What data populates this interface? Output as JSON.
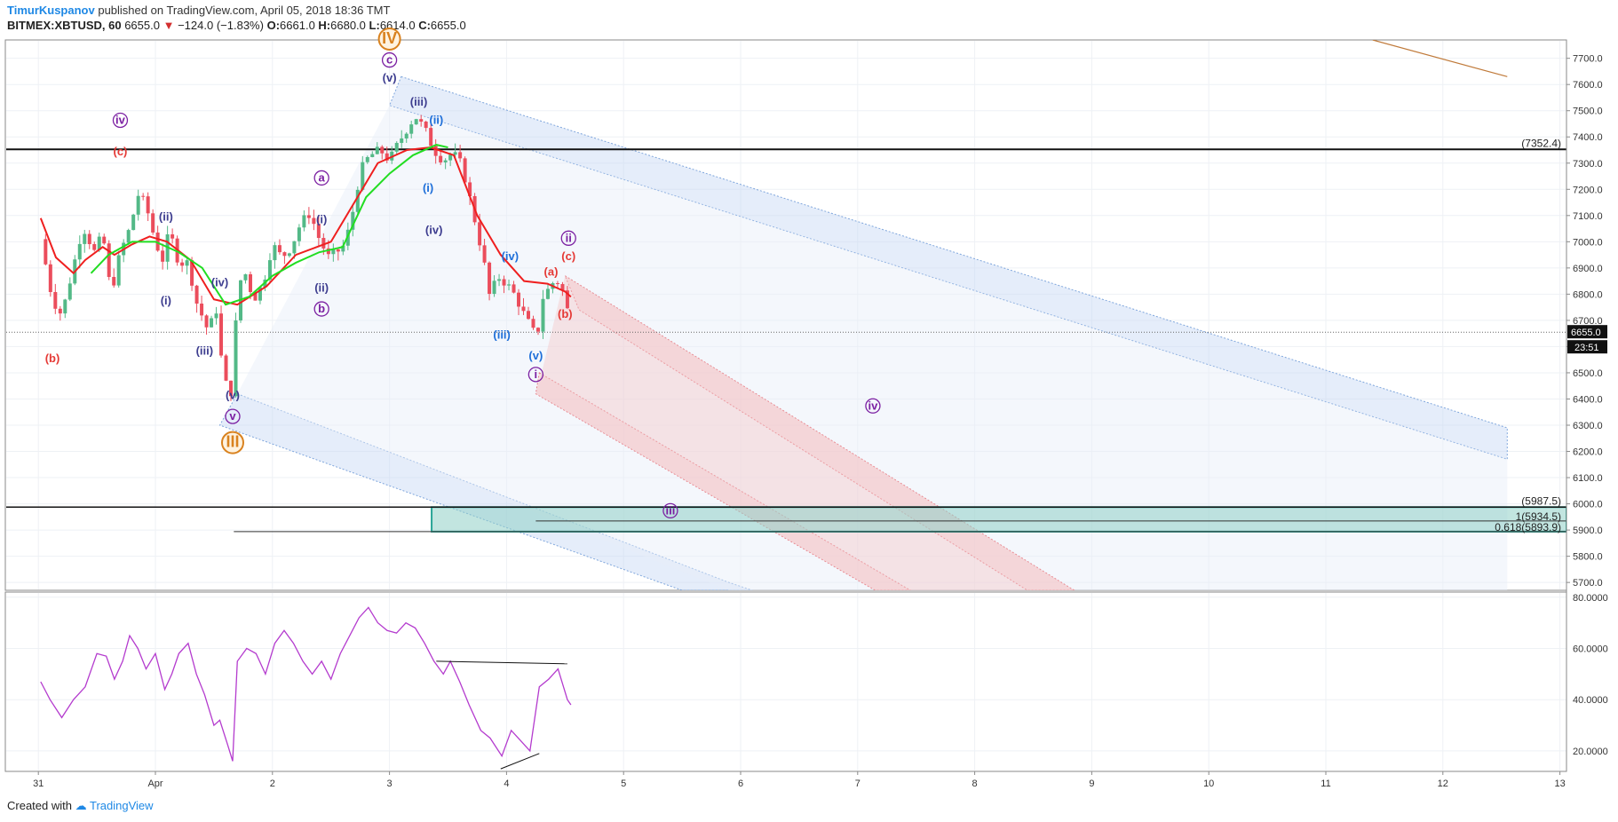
{
  "header": {
    "author": "TimurKuspanov",
    "published_text": "published on TradingView.com, April 05, 2018 18:36 TMT",
    "symbol": "BITMEX:XBTUSD, 60",
    "last": "6655.0",
    "change": "−124.0 (−1.83%)",
    "o_label": "O:",
    "o": "6661.0",
    "h_label": "H:",
    "h": "6680.0",
    "l_label": "L:",
    "l": "6614.0",
    "c_label": "C:",
    "c": "6655.0"
  },
  "footer": {
    "created_with": "Created with",
    "brand": "TradingView"
  },
  "colors": {
    "up": "#53b987",
    "down": "#eb4d5c",
    "ema": "#ef1f1f",
    "sma": "#22dd22",
    "rsi": "#b43bce",
    "channel_blue": "#c5d8f3",
    "channel_red": "#f4c7c9",
    "zone": "#8fcfc7",
    "wave_purple": "#7b1fa2",
    "wave_red": "#e53935",
    "wave_blue": "#1e6fd9",
    "wave_navy": "#3d3d8f",
    "wave_orange": "#d9821f"
  },
  "chart_data": [
    {
      "type": "candlestick",
      "title": "BITMEX:XBTUSD, 60",
      "x_ticks": [
        "31",
        "Apr",
        "2",
        "3",
        "4",
        "5",
        "6",
        "7",
        "8",
        "9",
        "10",
        "11",
        "12",
        "13"
      ],
      "y_ticks": [
        "5700.0",
        "5800.0",
        "5900.0",
        "6000.0",
        "6100.0",
        "6200.0",
        "6300.0",
        "6400.0",
        "6500.0",
        "6600.0",
        "6700.0",
        "6800.0",
        "6900.0",
        "7000.0",
        "7100.0",
        "7200.0",
        "7300.0",
        "7400.0",
        "7500.0",
        "7600.0",
        "7700.0"
      ],
      "ylim": [
        5670,
        7770
      ],
      "last_price_label": "6655.0",
      "countdown_label": "23:51",
      "price_path": [
        [
          -0.98,
          7010
        ],
        [
          -0.88,
          6780
        ],
        [
          -0.8,
          6720
        ],
        [
          -0.72,
          6870
        ],
        [
          -0.62,
          7060
        ],
        [
          -0.52,
          6960
        ],
        [
          -0.45,
          7030
        ],
        [
          -0.38,
          6800
        ],
        [
          -0.3,
          6960
        ],
        [
          -0.22,
          7050
        ],
        [
          -0.14,
          7190
        ],
        [
          -0.07,
          7120
        ],
        [
          0.0,
          7000
        ],
        [
          0.06,
          6930
        ],
        [
          0.12,
          7040
        ],
        [
          0.2,
          6920
        ],
        [
          0.28,
          6920
        ],
        [
          0.35,
          6770
        ],
        [
          0.45,
          6660
        ],
        [
          0.52,
          6740
        ],
        [
          0.58,
          6480
        ],
        [
          0.62,
          6440
        ],
        [
          0.66,
          6420
        ],
        [
          0.7,
          6820
        ],
        [
          0.76,
          6890
        ],
        [
          0.84,
          6780
        ],
        [
          0.92,
          6840
        ],
        [
          1.0,
          6990
        ],
        [
          1.08,
          6940
        ],
        [
          1.16,
          6980
        ],
        [
          1.24,
          7070
        ],
        [
          1.32,
          7110
        ],
        [
          1.4,
          7010
        ],
        [
          1.48,
          6940
        ],
        [
          1.55,
          6960
        ],
        [
          1.62,
          6990
        ],
        [
          1.68,
          7100
        ],
        [
          1.73,
          7220
        ],
        [
          1.78,
          7300
        ],
        [
          1.84,
          7330
        ],
        [
          1.92,
          7350
        ],
        [
          2.0,
          7310
        ],
        [
          2.08,
          7380
        ],
        [
          2.16,
          7440
        ],
        [
          2.22,
          7480
        ],
        [
          2.3,
          7430
        ],
        [
          2.38,
          7350
        ],
        [
          2.46,
          7310
        ],
        [
          2.54,
          7340
        ],
        [
          2.62,
          7290
        ],
        [
          2.7,
          7140
        ],
        [
          2.8,
          6940
        ],
        [
          2.86,
          6780
        ],
        [
          2.92,
          6870
        ],
        [
          3.0,
          6840
        ],
        [
          3.08,
          6790
        ],
        [
          3.14,
          6730
        ],
        [
          3.2,
          6680
        ],
        [
          3.26,
          6630
        ],
        [
          3.3,
          6780
        ],
        [
          3.36,
          6820
        ],
        [
          3.42,
          6860
        ],
        [
          3.48,
          6810
        ],
        [
          3.52,
          6740
        ],
        [
          3.55,
          6655
        ]
      ],
      "ema_path": [
        [
          -0.98,
          7090
        ],
        [
          -0.85,
          6940
        ],
        [
          -0.7,
          6880
        ],
        [
          -0.6,
          6930
        ],
        [
          -0.45,
          6980
        ],
        [
          -0.35,
          6950
        ],
        [
          -0.2,
          6990
        ],
        [
          -0.05,
          7020
        ],
        [
          0.1,
          7000
        ],
        [
          0.3,
          6930
        ],
        [
          0.5,
          6780
        ],
        [
          0.7,
          6760
        ],
        [
          0.95,
          6830
        ],
        [
          1.2,
          6950
        ],
        [
          1.5,
          7000
        ],
        [
          1.9,
          7300
        ],
        [
          2.15,
          7350
        ],
        [
          2.35,
          7360
        ],
        [
          2.55,
          7330
        ],
        [
          2.75,
          7100
        ],
        [
          2.95,
          6950
        ],
        [
          3.15,
          6850
        ],
        [
          3.35,
          6840
        ],
        [
          3.5,
          6810
        ],
        [
          3.55,
          6790
        ]
      ],
      "sma_path": [
        [
          -0.55,
          6880
        ],
        [
          -0.4,
          6950
        ],
        [
          -0.2,
          7000
        ],
        [
          0.0,
          7000
        ],
        [
          0.2,
          6960
        ],
        [
          0.4,
          6900
        ],
        [
          0.6,
          6760
        ],
        [
          0.8,
          6790
        ],
        [
          1.0,
          6870
        ],
        [
          1.2,
          6920
        ],
        [
          1.4,
          6960
        ],
        [
          1.6,
          6980
        ],
        [
          1.8,
          7170
        ],
        [
          2.0,
          7260
        ],
        [
          2.2,
          7330
        ],
        [
          2.4,
          7370
        ],
        [
          2.5,
          7360
        ]
      ],
      "horizontal_levels": [
        {
          "price": 7352.4,
          "label": "(7352.4)"
        },
        {
          "price": 5987.5,
          "label": "(5987.5)"
        },
        {
          "price": 5934.5,
          "label": "1(5934.5)"
        },
        {
          "price": 5893.9,
          "label": "0.618(5893.9)"
        }
      ],
      "wave_labels": [
        {
          "text": "(b)",
          "color": "red"
        },
        {
          "text": "iv",
          "color": "purple",
          "circled": true
        },
        {
          "text": "(c)",
          "color": "red"
        },
        {
          "text": "(ii)",
          "color": "navy"
        },
        {
          "text": "(i)",
          "color": "navy"
        },
        {
          "text": "(iv)",
          "color": "navy"
        },
        {
          "text": "(iii)",
          "color": "navy"
        },
        {
          "text": "(v)",
          "color": "navy"
        },
        {
          "text": "v",
          "color": "purple",
          "circled": true
        },
        {
          "text": "III",
          "color": "orange",
          "circled": true
        },
        {
          "text": "a",
          "color": "purple",
          "circled": true
        },
        {
          "text": "(i)",
          "color": "navy"
        },
        {
          "text": "(ii)",
          "color": "navy"
        },
        {
          "text": "b",
          "color": "purple",
          "circled": true
        },
        {
          "text": "(iii)",
          "color": "navy"
        },
        {
          "text": "(iv)",
          "color": "navy"
        },
        {
          "text": "IV",
          "color": "orange",
          "circled": true
        },
        {
          "text": "c",
          "color": "purple",
          "circled": true
        },
        {
          "text": "(v)",
          "color": "navy"
        },
        {
          "text": "(ii)",
          "color": "blue"
        },
        {
          "text": "(i)",
          "color": "blue"
        },
        {
          "text": "(iv)",
          "color": "blue"
        },
        {
          "text": "(iii)",
          "color": "blue"
        },
        {
          "text": "(v)",
          "color": "blue"
        },
        {
          "text": "i",
          "color": "purple",
          "circled": true
        },
        {
          "text": "ii",
          "color": "purple",
          "circled": true
        },
        {
          "text": "(c)",
          "color": "red"
        },
        {
          "text": "(a)",
          "color": "red"
        },
        {
          "text": "(b)",
          "color": "red"
        },
        {
          "text": "iv",
          "color": "purple",
          "circled": true
        },
        {
          "text": "iii",
          "color": "purple",
          "circled": true
        }
      ]
    },
    {
      "type": "line",
      "title": "",
      "y_ticks": [
        "20.0000",
        "40.0000",
        "60.0000",
        "80.0000"
      ],
      "ylim": [
        12,
        82
      ],
      "series": [
        {
          "points": [
            [
              -0.98,
              47
            ],
            [
              -0.9,
              40
            ],
            [
              -0.8,
              33
            ],
            [
              -0.7,
              40
            ],
            [
              -0.6,
              45
            ],
            [
              -0.5,
              58
            ],
            [
              -0.42,
              57
            ],
            [
              -0.35,
              48
            ],
            [
              -0.28,
              55
            ],
            [
              -0.22,
              65
            ],
            [
              -0.15,
              60
            ],
            [
              -0.08,
              52
            ],
            [
              0.0,
              58
            ],
            [
              0.08,
              44
            ],
            [
              0.14,
              50
            ],
            [
              0.2,
              58
            ],
            [
              0.28,
              62
            ],
            [
              0.35,
              50
            ],
            [
              0.42,
              42
            ],
            [
              0.5,
              30
            ],
            [
              0.55,
              32
            ],
            [
              0.62,
              22
            ],
            [
              0.66,
              16
            ],
            [
              0.7,
              55
            ],
            [
              0.78,
              60
            ],
            [
              0.86,
              58
            ],
            [
              0.94,
              50
            ],
            [
              1.02,
              62
            ],
            [
              1.1,
              67
            ],
            [
              1.18,
              62
            ],
            [
              1.26,
              55
            ],
            [
              1.34,
              50
            ],
            [
              1.42,
              55
            ],
            [
              1.5,
              48
            ],
            [
              1.58,
              58
            ],
            [
              1.66,
              65
            ],
            [
              1.74,
              72
            ],
            [
              1.82,
              76
            ],
            [
              1.9,
              70
            ],
            [
              1.98,
              67
            ],
            [
              2.06,
              66
            ],
            [
              2.14,
              70
            ],
            [
              2.22,
              68
            ],
            [
              2.3,
              62
            ],
            [
              2.38,
              55
            ],
            [
              2.46,
              50
            ],
            [
              2.52,
              55
            ],
            [
              2.6,
              47
            ],
            [
              2.68,
              38
            ],
            [
              2.78,
              28
            ],
            [
              2.86,
              25
            ],
            [
              2.96,
              18
            ],
            [
              3.04,
              28
            ],
            [
              3.12,
              24
            ],
            [
              3.2,
              20
            ],
            [
              3.28,
              45
            ],
            [
              3.36,
              48
            ],
            [
              3.44,
              52
            ],
            [
              3.52,
              40
            ],
            [
              3.55,
              38
            ]
          ]
        }
      ],
      "annotations": [
        {
          "from": [
            2.4,
            55
          ],
          "to": [
            3.52,
            54
          ]
        },
        {
          "from": [
            2.95,
            13
          ],
          "to": [
            3.28,
            19
          ]
        }
      ]
    }
  ]
}
